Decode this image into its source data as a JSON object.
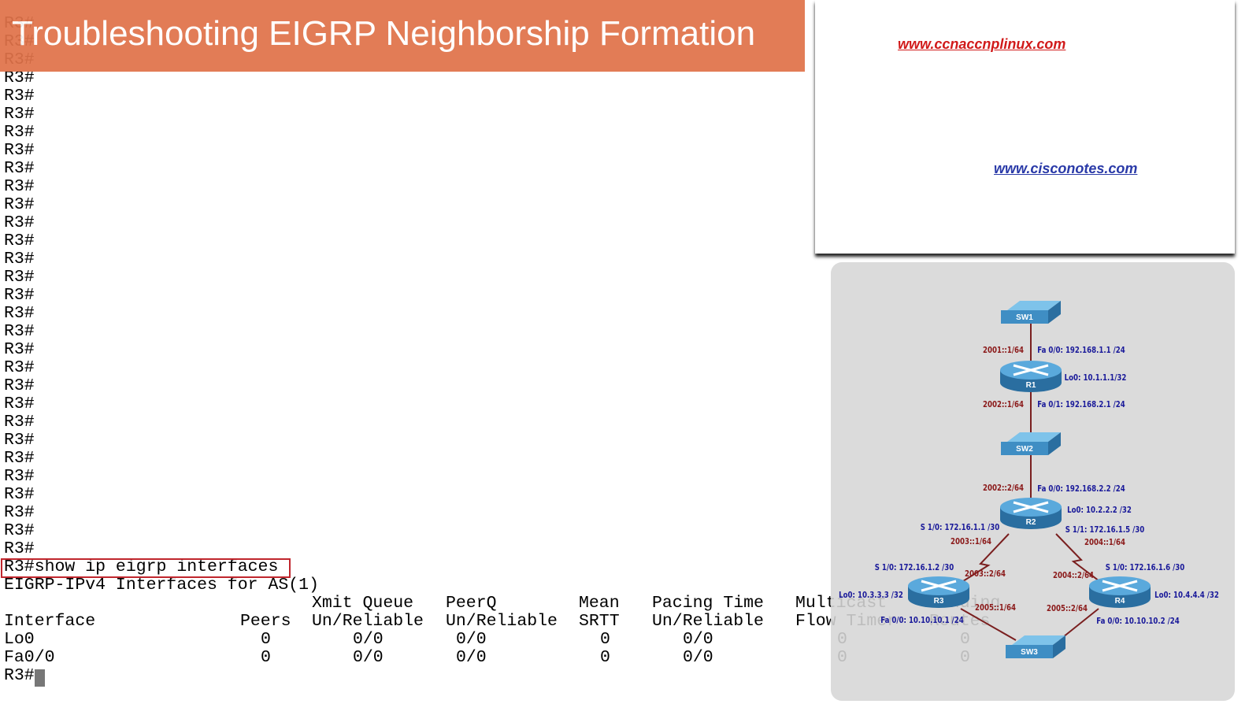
{
  "banner": {
    "title": "Troubleshooting EIGRP Neighborship Formation"
  },
  "links": [
    "www.ccnaccnplinux.com",
    "www.cisconotes.com"
  ],
  "terminal": {
    "prompt_lines": [
      "R3#",
      "R3#",
      "R3#",
      "R3#",
      "R3#",
      "R3#",
      "R3#",
      "R3#",
      "R3#",
      "R3#",
      "R3#",
      "R3#",
      "R3#",
      "R3#",
      "R3#",
      "R3#",
      "R3#",
      "R3#",
      "R3#",
      "R3#",
      "R3#",
      "R3#",
      "R3#",
      "R3#",
      "R3#",
      "R3#",
      "R3#",
      "R3#",
      "R3#",
      "R3#"
    ],
    "command": "R3#show ip eigrp interfaces",
    "output_title": "EIGRP-IPv4 Interfaces for AS(1)",
    "header_top": [
      "Xmit Queue",
      "PeerQ",
      "Mean",
      "Pacing Time",
      "Multicast",
      "Pending"
    ],
    "header_bottom": [
      "Interface",
      "Peers",
      "Un/Reliable",
      "Un/Reliable",
      "SRTT",
      "Un/Reliable",
      "Flow Timer",
      "Routes"
    ],
    "rows": [
      [
        "Lo0",
        0,
        "0/0",
        "0/0",
        0,
        "0/0",
        0,
        0
      ],
      [
        "Fa0/0",
        0,
        "0/0",
        "0/0",
        0,
        "0/0",
        0,
        0
      ]
    ],
    "final_prompt": "R3#"
  },
  "diagram": {
    "nodes": [
      "SW1",
      "R1",
      "SW2",
      "R2",
      "R3",
      "R4",
      "SW3"
    ],
    "labels": [
      {
        "text": "2001::1/64",
        "color": "#8b1a1a"
      },
      {
        "text": "Fa 0/0: 192.168.1.1 /24",
        "color": "#1a1a9a"
      },
      {
        "text": "Lo0: 10.1.1.1/32",
        "color": "#1a1a9a"
      },
      {
        "text": "2002::1/64",
        "color": "#8b1a1a"
      },
      {
        "text": "Fa 0/1: 192.168.2.1 /24",
        "color": "#1a1a9a"
      },
      {
        "text": "2002::2/64",
        "color": "#8b1a1a"
      },
      {
        "text": "Fa 0/0: 192.168.2.2 /24",
        "color": "#1a1a9a"
      },
      {
        "text": "Lo0: 10.2.2.2 /32",
        "color": "#1a1a9a"
      },
      {
        "text": "S 1/0: 172.16.1.1 /30",
        "color": "#1a1a9a"
      },
      {
        "text": "S 1/1: 172.16.1.5 /30",
        "color": "#1a1a9a"
      },
      {
        "text": "2003::1/64",
        "color": "#8b1a1a"
      },
      {
        "text": "2004::1/64",
        "color": "#8b1a1a"
      },
      {
        "text": "S 1/0: 172.16.1.2 /30",
        "color": "#1a1a9a"
      },
      {
        "text": "2003::2/64",
        "color": "#8b1a1a"
      },
      {
        "text": "2004::2/64",
        "color": "#8b1a1a"
      },
      {
        "text": "S 1/0: 172.16.1.6 /30",
        "color": "#1a1a9a"
      },
      {
        "text": "Lo0: 10.3.3.3 /32",
        "color": "#1a1a9a"
      },
      {
        "text": "Lo0: 10.4.4.4 /32",
        "color": "#1a1a9a"
      },
      {
        "text": "2005::1/64",
        "color": "#8b1a1a"
      },
      {
        "text": "2005::2/64",
        "color": "#8b1a1a"
      },
      {
        "text": "Fa 0/0: 10.10.10.1 /24",
        "color": "#1a1a9a"
      },
      {
        "text": "Fa 0/0: 10.10.10.2 /24",
        "color": "#1a1a9a"
      }
    ]
  }
}
